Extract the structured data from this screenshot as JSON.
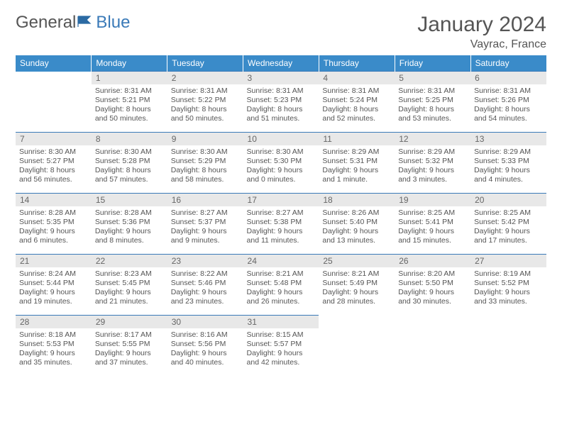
{
  "logo": {
    "general": "General",
    "blue": "Blue"
  },
  "title": "January 2024",
  "location": "Vayrac, France",
  "colors": {
    "header_bg": "#3a8bc9",
    "header_text": "#ffffff",
    "row_border": "#3a7ab8",
    "daynum_bg": "#e8e8e8",
    "text": "#555555",
    "logo_blue": "#3a7ab8"
  },
  "day_headers": [
    "Sunday",
    "Monday",
    "Tuesday",
    "Wednesday",
    "Thursday",
    "Friday",
    "Saturday"
  ],
  "weeks": [
    [
      null,
      {
        "day": "1",
        "sunrise": "Sunrise: 8:31 AM",
        "sunset": "Sunset: 5:21 PM",
        "daylight1": "Daylight: 8 hours",
        "daylight2": "and 50 minutes."
      },
      {
        "day": "2",
        "sunrise": "Sunrise: 8:31 AM",
        "sunset": "Sunset: 5:22 PM",
        "daylight1": "Daylight: 8 hours",
        "daylight2": "and 50 minutes."
      },
      {
        "day": "3",
        "sunrise": "Sunrise: 8:31 AM",
        "sunset": "Sunset: 5:23 PM",
        "daylight1": "Daylight: 8 hours",
        "daylight2": "and 51 minutes."
      },
      {
        "day": "4",
        "sunrise": "Sunrise: 8:31 AM",
        "sunset": "Sunset: 5:24 PM",
        "daylight1": "Daylight: 8 hours",
        "daylight2": "and 52 minutes."
      },
      {
        "day": "5",
        "sunrise": "Sunrise: 8:31 AM",
        "sunset": "Sunset: 5:25 PM",
        "daylight1": "Daylight: 8 hours",
        "daylight2": "and 53 minutes."
      },
      {
        "day": "6",
        "sunrise": "Sunrise: 8:31 AM",
        "sunset": "Sunset: 5:26 PM",
        "daylight1": "Daylight: 8 hours",
        "daylight2": "and 54 minutes."
      }
    ],
    [
      {
        "day": "7",
        "sunrise": "Sunrise: 8:30 AM",
        "sunset": "Sunset: 5:27 PM",
        "daylight1": "Daylight: 8 hours",
        "daylight2": "and 56 minutes."
      },
      {
        "day": "8",
        "sunrise": "Sunrise: 8:30 AM",
        "sunset": "Sunset: 5:28 PM",
        "daylight1": "Daylight: 8 hours",
        "daylight2": "and 57 minutes."
      },
      {
        "day": "9",
        "sunrise": "Sunrise: 8:30 AM",
        "sunset": "Sunset: 5:29 PM",
        "daylight1": "Daylight: 8 hours",
        "daylight2": "and 58 minutes."
      },
      {
        "day": "10",
        "sunrise": "Sunrise: 8:30 AM",
        "sunset": "Sunset: 5:30 PM",
        "daylight1": "Daylight: 9 hours",
        "daylight2": "and 0 minutes."
      },
      {
        "day": "11",
        "sunrise": "Sunrise: 8:29 AM",
        "sunset": "Sunset: 5:31 PM",
        "daylight1": "Daylight: 9 hours",
        "daylight2": "and 1 minute."
      },
      {
        "day": "12",
        "sunrise": "Sunrise: 8:29 AM",
        "sunset": "Sunset: 5:32 PM",
        "daylight1": "Daylight: 9 hours",
        "daylight2": "and 3 minutes."
      },
      {
        "day": "13",
        "sunrise": "Sunrise: 8:29 AM",
        "sunset": "Sunset: 5:33 PM",
        "daylight1": "Daylight: 9 hours",
        "daylight2": "and 4 minutes."
      }
    ],
    [
      {
        "day": "14",
        "sunrise": "Sunrise: 8:28 AM",
        "sunset": "Sunset: 5:35 PM",
        "daylight1": "Daylight: 9 hours",
        "daylight2": "and 6 minutes."
      },
      {
        "day": "15",
        "sunrise": "Sunrise: 8:28 AM",
        "sunset": "Sunset: 5:36 PM",
        "daylight1": "Daylight: 9 hours",
        "daylight2": "and 8 minutes."
      },
      {
        "day": "16",
        "sunrise": "Sunrise: 8:27 AM",
        "sunset": "Sunset: 5:37 PM",
        "daylight1": "Daylight: 9 hours",
        "daylight2": "and 9 minutes."
      },
      {
        "day": "17",
        "sunrise": "Sunrise: 8:27 AM",
        "sunset": "Sunset: 5:38 PM",
        "daylight1": "Daylight: 9 hours",
        "daylight2": "and 11 minutes."
      },
      {
        "day": "18",
        "sunrise": "Sunrise: 8:26 AM",
        "sunset": "Sunset: 5:40 PM",
        "daylight1": "Daylight: 9 hours",
        "daylight2": "and 13 minutes."
      },
      {
        "day": "19",
        "sunrise": "Sunrise: 8:25 AM",
        "sunset": "Sunset: 5:41 PM",
        "daylight1": "Daylight: 9 hours",
        "daylight2": "and 15 minutes."
      },
      {
        "day": "20",
        "sunrise": "Sunrise: 8:25 AM",
        "sunset": "Sunset: 5:42 PM",
        "daylight1": "Daylight: 9 hours",
        "daylight2": "and 17 minutes."
      }
    ],
    [
      {
        "day": "21",
        "sunrise": "Sunrise: 8:24 AM",
        "sunset": "Sunset: 5:44 PM",
        "daylight1": "Daylight: 9 hours",
        "daylight2": "and 19 minutes."
      },
      {
        "day": "22",
        "sunrise": "Sunrise: 8:23 AM",
        "sunset": "Sunset: 5:45 PM",
        "daylight1": "Daylight: 9 hours",
        "daylight2": "and 21 minutes."
      },
      {
        "day": "23",
        "sunrise": "Sunrise: 8:22 AM",
        "sunset": "Sunset: 5:46 PM",
        "daylight1": "Daylight: 9 hours",
        "daylight2": "and 23 minutes."
      },
      {
        "day": "24",
        "sunrise": "Sunrise: 8:21 AM",
        "sunset": "Sunset: 5:48 PM",
        "daylight1": "Daylight: 9 hours",
        "daylight2": "and 26 minutes."
      },
      {
        "day": "25",
        "sunrise": "Sunrise: 8:21 AM",
        "sunset": "Sunset: 5:49 PM",
        "daylight1": "Daylight: 9 hours",
        "daylight2": "and 28 minutes."
      },
      {
        "day": "26",
        "sunrise": "Sunrise: 8:20 AM",
        "sunset": "Sunset: 5:50 PM",
        "daylight1": "Daylight: 9 hours",
        "daylight2": "and 30 minutes."
      },
      {
        "day": "27",
        "sunrise": "Sunrise: 8:19 AM",
        "sunset": "Sunset: 5:52 PM",
        "daylight1": "Daylight: 9 hours",
        "daylight2": "and 33 minutes."
      }
    ],
    [
      {
        "day": "28",
        "sunrise": "Sunrise: 8:18 AM",
        "sunset": "Sunset: 5:53 PM",
        "daylight1": "Daylight: 9 hours",
        "daylight2": "and 35 minutes."
      },
      {
        "day": "29",
        "sunrise": "Sunrise: 8:17 AM",
        "sunset": "Sunset: 5:55 PM",
        "daylight1": "Daylight: 9 hours",
        "daylight2": "and 37 minutes."
      },
      {
        "day": "30",
        "sunrise": "Sunrise: 8:16 AM",
        "sunset": "Sunset: 5:56 PM",
        "daylight1": "Daylight: 9 hours",
        "daylight2": "and 40 minutes."
      },
      {
        "day": "31",
        "sunrise": "Sunrise: 8:15 AM",
        "sunset": "Sunset: 5:57 PM",
        "daylight1": "Daylight: 9 hours",
        "daylight2": "and 42 minutes."
      },
      null,
      null,
      null
    ]
  ]
}
